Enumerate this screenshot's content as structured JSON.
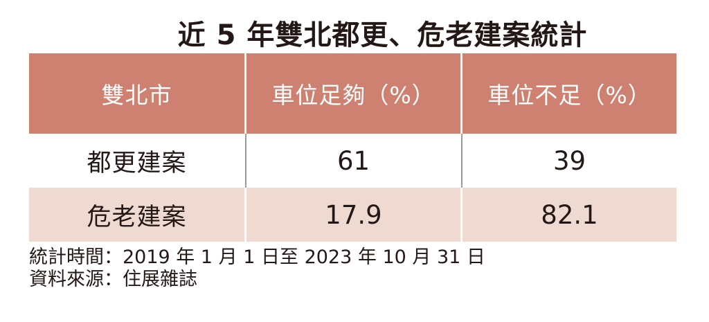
{
  "title": "近 5 年雙北都更、危老建案統計",
  "table": {
    "headers": [
      "雙北市",
      "車位足夠（%）",
      "車位不足（%）"
    ],
    "rows": [
      {
        "label": "都更建案",
        "sufficient": "61",
        "insufficient": "39"
      },
      {
        "label": "危老建案",
        "sufficient": "17.9",
        "insufficient": "82.1"
      }
    ]
  },
  "footer": {
    "period": "統計時間：2019 年 1 月 1 日至 2023 年 10 月 31 日",
    "source": "資料來源：住展雜誌"
  },
  "colors": {
    "header_bg": "#CE8170",
    "tint_row_bg": "#EEDAD1",
    "text_dark": "#231815",
    "header_text": "#FFFFFF",
    "divider_gray": "#9A9A9A"
  },
  "chart_data": {
    "type": "table",
    "title": "近 5 年雙北都更、危老建案統計",
    "columns": [
      "雙北市",
      "車位足夠（%）",
      "車位不足（%）"
    ],
    "rows": [
      [
        "都更建案",
        61,
        39
      ],
      [
        "危老建案",
        17.9,
        82.1
      ]
    ],
    "notes": [
      "統計時間：2019 年 1 月 1 日至 2023 年 10 月 31 日",
      "資料來源：住展雜誌"
    ]
  }
}
